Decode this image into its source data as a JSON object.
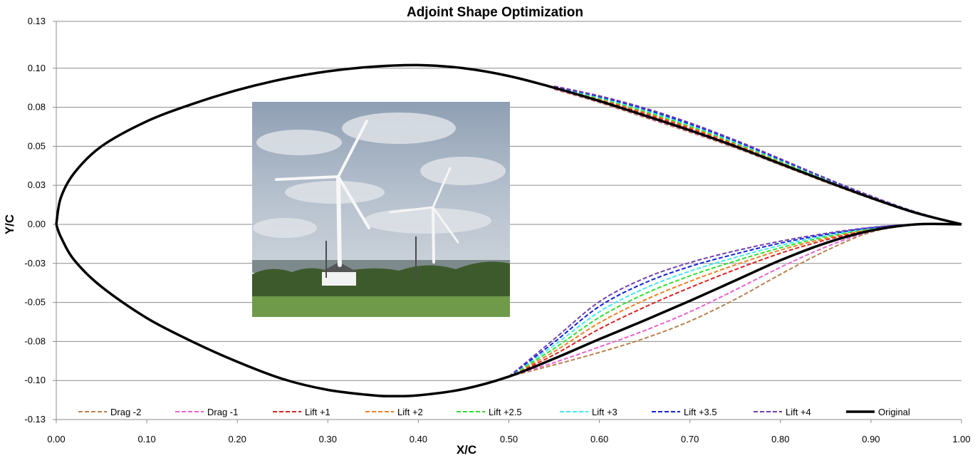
{
  "chart_data": {
    "type": "line",
    "title": "Adjoint Shape Optimization",
    "xlabel": "X/C",
    "ylabel": "Y/C",
    "xlim": [
      0,
      1
    ],
    "ylim": [
      -0.125,
      0.13
    ],
    "x_ticks": [
      0,
      0.1,
      0.2,
      0.3,
      0.4,
      0.5,
      0.6,
      0.7,
      0.8,
      0.9,
      1.0
    ],
    "x_tick_labels": [
      "0.00",
      "0.10",
      "0.20",
      "0.30",
      "0.40",
      "0.50",
      "0.60",
      "0.70",
      "0.80",
      "0.90",
      "1.00"
    ],
    "y_ticks": [
      0.13,
      0.1,
      0.075,
      0.05,
      0.025,
      0,
      -0.025,
      -0.05,
      -0.075,
      -0.1,
      -0.125
    ],
    "y_tick_labels": [
      "0.13",
      "0.10",
      "0.08",
      "0.05",
      "0.03",
      "0.00",
      "-0.03",
      "-0.05",
      "-0.08",
      "-0.10",
      "-0.13"
    ],
    "grid": "horizontal",
    "legend_position": "bottom",
    "upper_surface": {
      "x": [
        0,
        0.005,
        0.02,
        0.05,
        0.1,
        0.15,
        0.2,
        0.25,
        0.3,
        0.35,
        0.4,
        0.45,
        0.5,
        0.55
      ],
      "y": [
        0,
        0.017,
        0.033,
        0.05,
        0.066,
        0.077,
        0.086,
        0.093,
        0.098,
        0.101,
        0.102,
        0.1,
        0.095,
        0.0875
      ]
    },
    "lower_surface_common": {
      "x": [
        0,
        0.005,
        0.02,
        0.05,
        0.1,
        0.15,
        0.2,
        0.25,
        0.3,
        0.35,
        0.37,
        0.4,
        0.45,
        0.5
      ],
      "y": [
        0,
        -0.008,
        -0.023,
        -0.04,
        -0.06,
        -0.075,
        -0.088,
        -0.099,
        -0.106,
        -0.1095,
        -0.11,
        -0.1095,
        -0.1055,
        -0.0975
      ]
    },
    "series": [
      {
        "name": "Drag -2",
        "color": "#b8804d",
        "dashed": true,
        "upper": {
          "x": [
            0.55,
            0.6,
            0.65,
            0.7,
            0.75,
            0.8,
            0.85,
            0.9,
            0.95,
            1.0
          ],
          "y": [
            0.0865,
            0.078,
            0.0685,
            0.059,
            0.049,
            0.038,
            0.027,
            0.0165,
            0.007,
            0
          ]
        },
        "lower": {
          "x": [
            0.5,
            0.55,
            0.6,
            0.65,
            0.7,
            0.75,
            0.8,
            0.85,
            0.9,
            0.95,
            1.0
          ],
          "y": [
            -0.0975,
            -0.09,
            -0.082,
            -0.073,
            -0.062,
            -0.048,
            -0.032,
            -0.017,
            -0.005,
            0,
            0
          ]
        }
      },
      {
        "name": "Drag -1",
        "color": "#f060d0",
        "dashed": true,
        "upper": {
          "x": [
            0.55,
            0.6,
            0.65,
            0.7,
            0.75,
            0.8,
            0.85,
            0.9,
            0.95,
            1.0
          ],
          "y": [
            0.0868,
            0.0785,
            0.069,
            0.0595,
            0.0495,
            0.0385,
            0.0275,
            0.0168,
            0.0072,
            0
          ]
        },
        "lower": {
          "x": [
            0.5,
            0.55,
            0.6,
            0.65,
            0.7,
            0.75,
            0.8,
            0.85,
            0.9,
            0.95,
            1.0
          ],
          "y": [
            -0.0975,
            -0.0885,
            -0.0785,
            -0.068,
            -0.056,
            -0.042,
            -0.0275,
            -0.0145,
            -0.0045,
            0,
            0
          ]
        }
      },
      {
        "name": "Lift +1",
        "color": "#e02020",
        "dashed": true,
        "upper": {
          "x": [
            0.55,
            0.6,
            0.65,
            0.7,
            0.75,
            0.8,
            0.85,
            0.9,
            0.95,
            1.0
          ],
          "y": [
            0.0875,
            0.0798,
            0.071,
            0.0615,
            0.051,
            0.0395,
            0.0282,
            0.0172,
            0.0074,
            0
          ]
        },
        "lower": {
          "x": [
            0.5,
            0.55,
            0.6,
            0.65,
            0.7,
            0.75,
            0.8,
            0.85,
            0.9,
            0.95,
            1.0
          ],
          "y": [
            -0.0975,
            -0.0835,
            -0.067,
            -0.053,
            -0.0405,
            -0.029,
            -0.0185,
            -0.01,
            -0.0035,
            0,
            0
          ]
        }
      },
      {
        "name": "Lift +2",
        "color": "#f08020",
        "dashed": true,
        "upper": {
          "x": [
            0.55,
            0.6,
            0.65,
            0.7,
            0.75,
            0.8,
            0.85,
            0.9,
            0.95,
            1.0
          ],
          "y": [
            0.0877,
            0.0803,
            0.0717,
            0.0622,
            0.0516,
            0.04,
            0.0285,
            0.0174,
            0.0075,
            0
          ]
        },
        "lower": {
          "x": [
            0.5,
            0.55,
            0.6,
            0.65,
            0.7,
            0.75,
            0.8,
            0.85,
            0.9,
            0.95,
            1.0
          ],
          "y": [
            -0.0975,
            -0.0815,
            -0.063,
            -0.0485,
            -0.0365,
            -0.026,
            -0.0165,
            -0.009,
            -0.003,
            0,
            0
          ]
        }
      },
      {
        "name": "Lift +2.5",
        "color": "#30e030",
        "dashed": true,
        "upper": {
          "x": [
            0.55,
            0.6,
            0.65,
            0.7,
            0.75,
            0.8,
            0.85,
            0.9,
            0.95,
            1.0
          ],
          "y": [
            0.0879,
            0.0808,
            0.0724,
            0.0629,
            0.0522,
            0.0405,
            0.0288,
            0.0176,
            0.0076,
            0
          ]
        },
        "lower": {
          "x": [
            0.5,
            0.55,
            0.6,
            0.65,
            0.7,
            0.75,
            0.8,
            0.85,
            0.9,
            0.95,
            1.0
          ],
          "y": [
            -0.0975,
            -0.0795,
            -0.0595,
            -0.0445,
            -0.033,
            -0.0235,
            -0.015,
            -0.008,
            -0.0028,
            0,
            0
          ]
        }
      },
      {
        "name": "Lift +3",
        "color": "#40e8f0",
        "dashed": true,
        "upper": {
          "x": [
            0.55,
            0.6,
            0.65,
            0.7,
            0.75,
            0.8,
            0.85,
            0.9,
            0.95,
            1.0
          ],
          "y": [
            0.0881,
            0.0813,
            0.0731,
            0.0636,
            0.0528,
            0.041,
            0.0291,
            0.0178,
            0.0077,
            0
          ]
        },
        "lower": {
          "x": [
            0.5,
            0.55,
            0.6,
            0.65,
            0.7,
            0.75,
            0.8,
            0.85,
            0.9,
            0.95,
            1.0
          ],
          "y": [
            -0.0975,
            -0.0775,
            -0.056,
            -0.041,
            -0.03,
            -0.0212,
            -0.0135,
            -0.0072,
            -0.0025,
            0,
            0
          ]
        }
      },
      {
        "name": "Lift +3.5",
        "color": "#1020e0",
        "dashed": true,
        "upper": {
          "x": [
            0.55,
            0.6,
            0.65,
            0.7,
            0.75,
            0.8,
            0.85,
            0.9,
            0.95,
            1.0
          ],
          "y": [
            0.0883,
            0.0818,
            0.0738,
            0.0643,
            0.0534,
            0.0415,
            0.0294,
            0.018,
            0.0078,
            0
          ]
        },
        "lower": {
          "x": [
            0.5,
            0.55,
            0.6,
            0.65,
            0.7,
            0.75,
            0.8,
            0.85,
            0.9,
            0.95,
            1.0
          ],
          "y": [
            -0.0975,
            -0.0755,
            -0.0525,
            -0.0375,
            -0.027,
            -0.019,
            -0.012,
            -0.0065,
            -0.0022,
            0,
            0
          ]
        }
      },
      {
        "name": "Lift +4",
        "color": "#7040b0",
        "dashed": true,
        "upper": {
          "x": [
            0.55,
            0.6,
            0.65,
            0.7,
            0.75,
            0.8,
            0.85,
            0.9,
            0.95,
            1.0
          ],
          "y": [
            0.0885,
            0.0823,
            0.0745,
            0.065,
            0.054,
            0.042,
            0.0297,
            0.0182,
            0.0079,
            0
          ]
        },
        "lower": {
          "x": [
            0.5,
            0.55,
            0.6,
            0.65,
            0.7,
            0.75,
            0.8,
            0.85,
            0.9,
            0.95,
            1.0
          ],
          "y": [
            -0.0975,
            -0.0735,
            -0.0495,
            -0.0345,
            -0.0245,
            -0.017,
            -0.0108,
            -0.0058,
            -0.002,
            0,
            0
          ]
        }
      },
      {
        "name": "Original",
        "color": "#000000",
        "dashed": false,
        "upper": {
          "x": [
            0.55,
            0.6,
            0.65,
            0.7,
            0.75,
            0.8,
            0.85,
            0.9,
            0.95,
            1.0
          ],
          "y": [
            0.0872,
            0.079,
            0.0697,
            0.0602,
            0.05,
            0.0388,
            0.0277,
            0.017,
            0.0073,
            0
          ]
        },
        "lower": {
          "x": [
            0.5,
            0.55,
            0.6,
            0.65,
            0.7,
            0.75,
            0.8,
            0.85,
            0.9,
            0.95,
            1.0
          ],
          "y": [
            -0.0975,
            -0.086,
            -0.0735,
            -0.0615,
            -0.049,
            -0.036,
            -0.023,
            -0.012,
            -0.004,
            0,
            0
          ]
        }
      }
    ]
  },
  "inset_photo": {
    "subject": "wind-turbines-photo",
    "sky_color": "#a9b6c6",
    "cloud_color": "#d9dee5",
    "grass_color": "#6f9a4a",
    "hedge_color": "#3d5a2c"
  }
}
